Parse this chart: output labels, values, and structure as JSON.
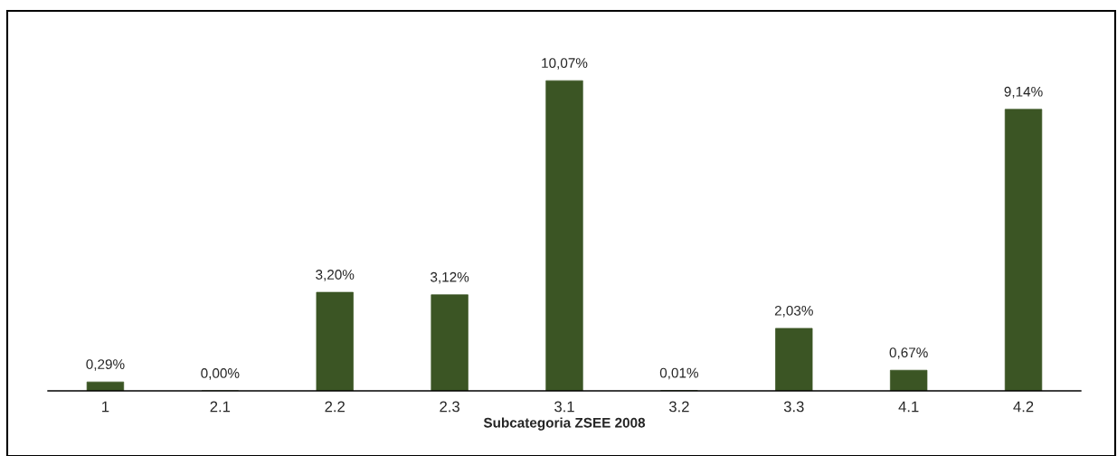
{
  "chart_data": {
    "type": "bar",
    "xlabel": "Subcategoria ZSEE 2008",
    "categories": [
      "1",
      "2.1",
      "2.2",
      "2.3",
      "3.1",
      "3.2",
      "3.3",
      "4.1",
      "4.2"
    ],
    "values": [
      0.29,
      0.0,
      3.2,
      3.12,
      10.07,
      0.01,
      2.03,
      0.67,
      9.14
    ],
    "value_labels": [
      "0,29%",
      "0,00%",
      "3,20%",
      "3,12%",
      "10,07%",
      "0,01%",
      "2,03%",
      "0,67%",
      "9,14%"
    ],
    "color": "#3b5524",
    "tick_labels": "x",
    "grid": false,
    "legend": false
  }
}
